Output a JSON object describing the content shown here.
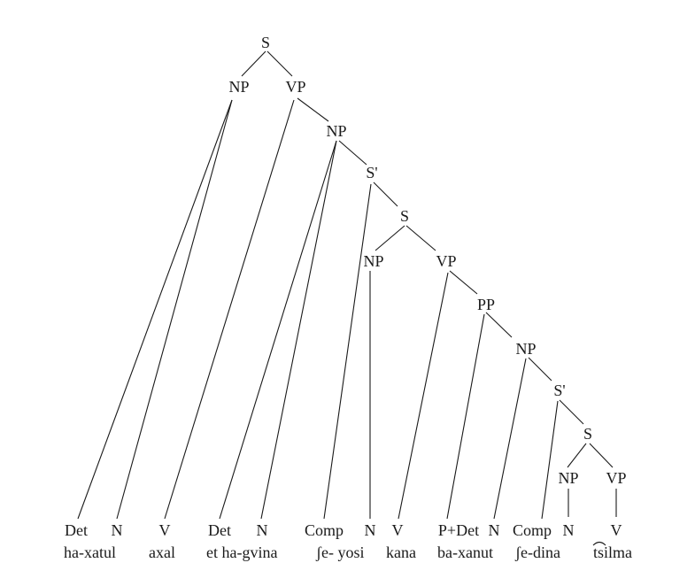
{
  "tree": {
    "labels": {
      "s_root": "S",
      "np_subj": "NP",
      "vp_main": "VP",
      "np_obj": "NP",
      "sbar_rel1": "S'",
      "s_rel1": "S",
      "np_rel1": "NP",
      "vp_rel1": "VP",
      "pp": "PP",
      "np_pp": "NP",
      "sbar_rel2": "S'",
      "s_rel2": "S",
      "np_rel2": "NP",
      "vp_rel2": "VP"
    },
    "leaves": [
      {
        "tag": "Det",
        "word": "ha-xatul"
      },
      {
        "tag": "N",
        "word": ""
      },
      {
        "tag": "V",
        "word": "axal"
      },
      {
        "tag": "Det",
        "word": "et ha-gvina"
      },
      {
        "tag": "N",
        "word": ""
      },
      {
        "tag": "Comp",
        "word": "ʃe- yosi"
      },
      {
        "tag": "N",
        "word": ""
      },
      {
        "tag": "V",
        "word": "kana"
      },
      {
        "tag": "P+Det",
        "word": "ba-xanut"
      },
      {
        "tag": "N",
        "word": ""
      },
      {
        "tag": "Comp",
        "word": "ʃe-dina"
      },
      {
        "tag": "N",
        "word": ""
      },
      {
        "tag": "V",
        "word": "tsilma"
      }
    ]
  }
}
